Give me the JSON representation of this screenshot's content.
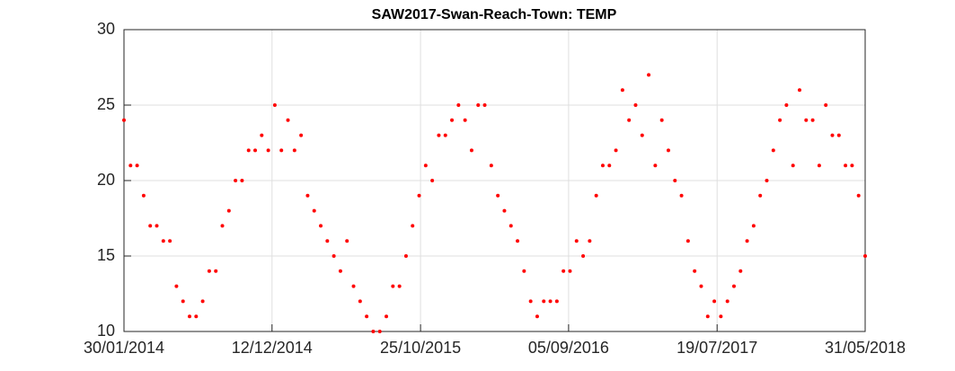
{
  "chart_data": {
    "type": "scatter",
    "title": "SAW2017-Swan-Reach-Town: TEMP",
    "grid": true,
    "x": [
      "2014-01-30",
      "2014-02-13",
      "2014-02-27",
      "2014-03-13",
      "2014-03-27",
      "2014-04-10",
      "2014-04-24",
      "2014-05-08",
      "2014-05-22",
      "2014-06-05",
      "2014-06-19",
      "2014-07-03",
      "2014-07-17",
      "2014-07-31",
      "2014-08-14",
      "2014-08-28",
      "2014-09-11",
      "2014-09-25",
      "2014-10-09",
      "2014-10-23",
      "2014-11-06",
      "2014-11-20",
      "2014-12-04",
      "2014-12-18",
      "2015-01-01",
      "2015-01-15",
      "2015-01-29",
      "2015-02-12",
      "2015-02-26",
      "2015-03-12",
      "2015-03-26",
      "2015-04-09",
      "2015-04-23",
      "2015-05-07",
      "2015-05-21",
      "2015-06-04",
      "2015-06-18",
      "2015-07-02",
      "2015-07-16",
      "2015-07-30",
      "2015-08-13",
      "2015-08-27",
      "2015-09-10",
      "2015-09-24",
      "2015-10-08",
      "2015-10-22",
      "2015-11-05",
      "2015-11-19",
      "2015-12-03",
      "2015-12-17",
      "2015-12-31",
      "2016-01-14",
      "2016-01-28",
      "2016-02-11",
      "2016-02-25",
      "2016-03-10",
      "2016-03-24",
      "2016-04-07",
      "2016-04-21",
      "2016-05-05",
      "2016-05-19",
      "2016-06-02",
      "2016-06-16",
      "2016-06-30",
      "2016-07-14",
      "2016-07-28",
      "2016-08-11",
      "2016-08-25",
      "2016-09-08",
      "2016-09-22",
      "2016-10-06",
      "2016-10-20",
      "2016-11-03",
      "2016-11-17",
      "2016-12-01",
      "2016-12-15",
      "2016-12-29",
      "2017-01-12",
      "2017-01-26",
      "2017-02-09",
      "2017-02-23",
      "2017-03-09",
      "2017-03-23",
      "2017-04-06",
      "2017-04-20",
      "2017-05-04",
      "2017-05-18",
      "2017-06-01",
      "2017-06-15",
      "2017-06-29",
      "2017-07-13",
      "2017-07-27",
      "2017-08-10",
      "2017-08-24",
      "2017-09-07",
      "2017-09-21",
      "2017-10-05",
      "2017-10-19",
      "2017-11-02",
      "2017-11-16",
      "2017-11-30",
      "2017-12-14",
      "2017-12-28",
      "2018-01-11",
      "2018-01-25",
      "2018-02-08",
      "2018-02-22",
      "2018-03-08",
      "2018-03-22",
      "2018-04-05",
      "2018-04-19",
      "2018-05-03",
      "2018-05-17",
      "2018-05-31"
    ],
    "series": [
      {
        "name": "TEMP",
        "color": "#ff0000",
        "values": [
          24,
          21,
          21,
          19,
          17,
          17,
          16,
          16,
          13,
          12,
          11,
          11,
          12,
          14,
          14,
          17,
          18,
          20,
          20,
          22,
          22,
          23,
          22,
          25,
          22,
          24,
          22,
          23,
          19,
          18,
          17,
          16,
          15,
          14,
          16,
          13,
          12,
          11,
          10,
          10,
          11,
          13,
          13,
          15,
          17,
          19,
          21,
          20,
          23,
          23,
          24,
          25,
          24,
          22,
          25,
          25,
          21,
          19,
          18,
          17,
          16,
          14,
          12,
          11,
          12,
          12,
          12,
          14,
          14,
          16,
          15,
          16,
          19,
          21,
          21,
          22,
          26,
          24,
          25,
          23,
          27,
          21,
          24,
          22,
          20,
          19,
          16,
          14,
          13,
          11,
          12,
          11,
          12,
          13,
          14,
          16,
          17,
          19,
          20,
          22,
          24,
          25,
          21,
          26,
          24,
          24,
          21,
          25,
          23,
          23,
          21,
          21,
          19,
          15
        ]
      }
    ],
    "xlim": [
      "2014-01-30",
      "2018-05-31"
    ],
    "xticks": [
      {
        "value": "2014-01-30",
        "label": "30/01/2014"
      },
      {
        "value": "2014-12-12",
        "label": "12/12/2014"
      },
      {
        "value": "2015-10-25",
        "label": "25/10/2015"
      },
      {
        "value": "2016-09-05",
        "label": "05/09/2016"
      },
      {
        "value": "2017-07-19",
        "label": "19/07/2017"
      },
      {
        "value": "2018-05-31",
        "label": "31/05/2018"
      }
    ],
    "ylim": [
      10,
      30
    ],
    "yticks": [
      10,
      15,
      20,
      25,
      30
    ]
  }
}
